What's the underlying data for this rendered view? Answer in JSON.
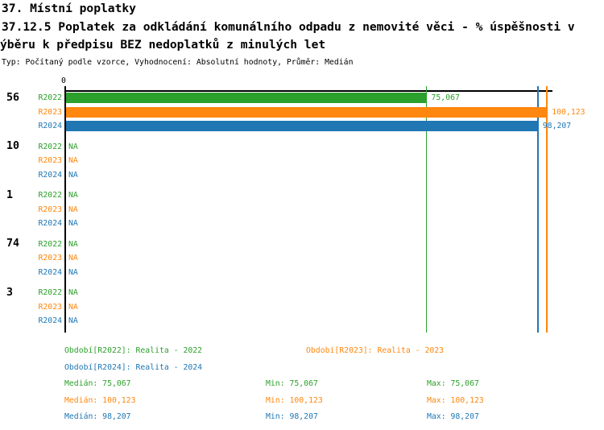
{
  "header": {
    "line1": "37. Místní poplatky",
    "line2": "37.12.5 Poplatek za odkládání komunálního odpadu z nemovité věci - % úspěšnosti v",
    "line3": "ýběru k předpisu BEZ nedoplatků z minulých let",
    "line4": "Typ: Počítaný podle vzorce, Vyhodnocení: Absolutní hodnoty, Průměr: Medián"
  },
  "colors": {
    "r2022": "#2CA02C",
    "r2023": "#FF870F",
    "r2024": "#2077B4",
    "axis": "#000000",
    "background": "#FFFFFF"
  },
  "chart_data": {
    "type": "bar",
    "orientation": "horizontal",
    "title": "37. Místní poplatky",
    "subtitle": "37.12.5 Poplatek za odkládání komunálního odpadu z nemovité věci - % úspěšnosti v ýběru k předpisu BEZ nedoplatků z minulých let",
    "meta": "Typ: Počítaný podle vzorce, Vyhodnocení: Absolutní hodnoty, Průměr: Medián",
    "axis_zero_label": "0",
    "xlim": [
      0,
      101.3
    ],
    "grid": false,
    "na_text": "NA",
    "series_labels": [
      "R2022",
      "R2023",
      "R2024"
    ],
    "series_color_keys": [
      "r2022",
      "r2023",
      "r2024"
    ],
    "categories": [
      "56",
      "10",
      "1",
      "74",
      "3"
    ],
    "groups": [
      {
        "label": "56",
        "values": [
          75.067,
          100.123,
          98.207
        ],
        "display": [
          "75,067",
          "100,123",
          "98,207"
        ]
      },
      {
        "label": "10",
        "values": [
          null,
          null,
          null
        ],
        "display": [
          "NA",
          "NA",
          "NA"
        ]
      },
      {
        "label": "1",
        "values": [
          null,
          null,
          null
        ],
        "display": [
          "NA",
          "NA",
          "NA"
        ]
      },
      {
        "label": "74",
        "values": [
          null,
          null,
          null
        ],
        "display": [
          "NA",
          "NA",
          "NA"
        ]
      },
      {
        "label": "3",
        "values": [
          null,
          null,
          null
        ],
        "display": [
          "NA",
          "NA",
          "NA"
        ]
      }
    ],
    "median_lines": [
      {
        "series": "R2022",
        "value": 75.067
      },
      {
        "series": "R2023",
        "value": 100.123
      },
      {
        "series": "R2024",
        "value": 98.207
      }
    ]
  },
  "legend": {
    "periods": [
      {
        "color_key": "r2022",
        "text": "Období[R2022]: Realita - 2022"
      },
      {
        "color_key": "r2023",
        "text": "Období[R2023]: Realita - 2023"
      },
      {
        "color_key": "r2024",
        "text": "Období[R2024]: Realita - 2024"
      }
    ],
    "stats": [
      {
        "color_key": "r2022",
        "median": "Medián: 75,067",
        "min": "Min: 75,067",
        "max": "Max: 75,067"
      },
      {
        "color_key": "r2023",
        "median": "Medián: 100,123",
        "min": "Min: 100,123",
        "max": "Max: 100,123"
      },
      {
        "color_key": "r2024",
        "median": "Medián: 98,207",
        "min": "Min: 98,207",
        "max": "Max: 98,207"
      }
    ]
  }
}
